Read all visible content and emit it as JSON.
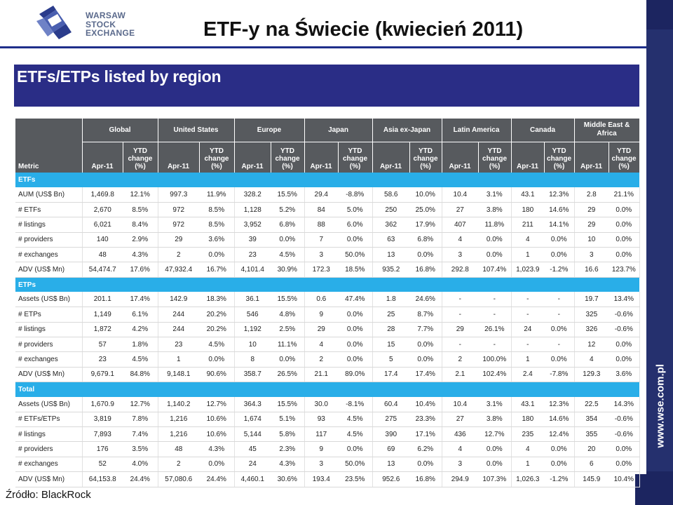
{
  "header": {
    "logo_text": [
      "WARSAW",
      "STOCK",
      "EXCHANGE"
    ],
    "title": "ETF-y na Świecie (kwiecień 2011)",
    "side_url": "www.wse.com.pl"
  },
  "banner": {
    "title": "ETFs/ETPs listed by region"
  },
  "table": {
    "metric_header": "Metric",
    "regions": [
      "Global",
      "United States",
      "Europe",
      "Japan",
      "Asia ex-Japan",
      "Latin America",
      "Canada",
      "Middle East & Africa"
    ],
    "period_label": "Apr-11",
    "change_label": "YTD change (%)",
    "sections": [
      {
        "name": "ETFs",
        "rows": [
          {
            "metric": "AUM (US$ Bn)",
            "values": [
              "1,469.8",
              "12.1%",
              "997.3",
              "11.9%",
              "328.2",
              "15.5%",
              "29.4",
              "-8.8%",
              "58.6",
              "10.0%",
              "10.4",
              "3.1%",
              "43.1",
              "12.3%",
              "2.8",
              "21.1%"
            ]
          },
          {
            "metric": "# ETFs",
            "values": [
              "2,670",
              "8.5%",
              "972",
              "8.5%",
              "1,128",
              "5.2%",
              "84",
              "5.0%",
              "250",
              "25.0%",
              "27",
              "3.8%",
              "180",
              "14.6%",
              "29",
              "0.0%"
            ]
          },
          {
            "metric": "# listings",
            "values": [
              "6,021",
              "8.4%",
              "972",
              "8.5%",
              "3,952",
              "6.8%",
              "88",
              "6.0%",
              "362",
              "17.9%",
              "407",
              "11.8%",
              "211",
              "14.1%",
              "29",
              "0.0%"
            ]
          },
          {
            "metric": "# providers",
            "values": [
              "140",
              "2.9%",
              "29",
              "3.6%",
              "39",
              "0.0%",
              "7",
              "0.0%",
              "63",
              "6.8%",
              "4",
              "0.0%",
              "4",
              "0.0%",
              "10",
              "0.0%"
            ]
          },
          {
            "metric": "# exchanges",
            "values": [
              "48",
              "4.3%",
              "2",
              "0.0%",
              "23",
              "4.5%",
              "3",
              "50.0%",
              "13",
              "0.0%",
              "3",
              "0.0%",
              "1",
              "0.0%",
              "3",
              "0.0%"
            ]
          },
          {
            "metric": "ADV (US$ Mn)",
            "values": [
              "54,474.7",
              "17.6%",
              "47,932.4",
              "16.7%",
              "4,101.4",
              "30.9%",
              "172.3",
              "18.5%",
              "935.2",
              "16.8%",
              "292.8",
              "107.4%",
              "1,023.9",
              "-1.2%",
              "16.6",
              "123.7%"
            ]
          }
        ]
      },
      {
        "name": "ETPs",
        "rows": [
          {
            "metric": "Assets (US$ Bn)",
            "values": [
              "201.1",
              "17.4%",
              "142.9",
              "18.3%",
              "36.1",
              "15.5%",
              "0.6",
              "47.4%",
              "1.8",
              "24.6%",
              "-",
              "-",
              "-",
              "-",
              "19.7",
              "13.4%"
            ]
          },
          {
            "metric": "# ETPs",
            "values": [
              "1,149",
              "6.1%",
              "244",
              "20.2%",
              "546",
              "4.8%",
              "9",
              "0.0%",
              "25",
              "8.7%",
              "-",
              "-",
              "-",
              "-",
              "325",
              "-0.6%"
            ]
          },
          {
            "metric": "# listings",
            "values": [
              "1,872",
              "4.2%",
              "244",
              "20.2%",
              "1,192",
              "2.5%",
              "29",
              "0.0%",
              "28",
              "7.7%",
              "29",
              "26.1%",
              "24",
              "0.0%",
              "326",
              "-0.6%"
            ]
          },
          {
            "metric": "# providers",
            "values": [
              "57",
              "1.8%",
              "23",
              "4.5%",
              "10",
              "11.1%",
              "4",
              "0.0%",
              "15",
              "0.0%",
              "-",
              "-",
              "-",
              "-",
              "12",
              "0.0%"
            ]
          },
          {
            "metric": "# exchanges",
            "values": [
              "23",
              "4.5%",
              "1",
              "0.0%",
              "8",
              "0.0%",
              "2",
              "0.0%",
              "5",
              "0.0%",
              "2",
              "100.0%",
              "1",
              "0.0%",
              "4",
              "0.0%"
            ]
          },
          {
            "metric": "ADV (US$ Mn)",
            "values": [
              "9,679.1",
              "84.8%",
              "9,148.1",
              "90.6%",
              "358.7",
              "26.5%",
              "21.1",
              "89.0%",
              "17.4",
              "17.4%",
              "2.1",
              "102.4%",
              "2.4",
              "-7.8%",
              "129.3",
              "3.6%"
            ]
          }
        ]
      },
      {
        "name": "Total",
        "rows": [
          {
            "metric": "Assets (US$ Bn)",
            "values": [
              "1,670.9",
              "12.7%",
              "1,140.2",
              "12.7%",
              "364.3",
              "15.5%",
              "30.0",
              "-8.1%",
              "60.4",
              "10.4%",
              "10.4",
              "3.1%",
              "43.1",
              "12.3%",
              "22.5",
              "14.3%"
            ]
          },
          {
            "metric": "# ETFs/ETPs",
            "values": [
              "3,819",
              "7.8%",
              "1,216",
              "10.6%",
              "1,674",
              "5.1%",
              "93",
              "4.5%",
              "275",
              "23.3%",
              "27",
              "3.8%",
              "180",
              "14.6%",
              "354",
              "-0.6%"
            ]
          },
          {
            "metric": "# listings",
            "values": [
              "7,893",
              "7.4%",
              "1,216",
              "10.6%",
              "5,144",
              "5.8%",
              "117",
              "4.5%",
              "390",
              "17.1%",
              "436",
              "12.7%",
              "235",
              "12.4%",
              "355",
              "-0.6%"
            ]
          },
          {
            "metric": "# providers",
            "values": [
              "176",
              "3.5%",
              "48",
              "4.3%",
              "45",
              "2.3%",
              "9",
              "0.0%",
              "69",
              "6.2%",
              "4",
              "0.0%",
              "4",
              "0.0%",
              "20",
              "0.0%"
            ]
          },
          {
            "metric": "# exchanges",
            "values": [
              "52",
              "4.0%",
              "2",
              "0.0%",
              "24",
              "4.3%",
              "3",
              "50.0%",
              "13",
              "0.0%",
              "3",
              "0.0%",
              "1",
              "0.0%",
              "6",
              "0.0%"
            ]
          },
          {
            "metric": "ADV (US$ Mn)",
            "values": [
              "64,153.8",
              "24.4%",
              "57,080.6",
              "24.4%",
              "4,460.1",
              "30.6%",
              "193.4",
              "23.5%",
              "952.6",
              "16.8%",
              "294.9",
              "107.3%",
              "1,026.3",
              "-1.2%",
              "145.9",
              "10.4%"
            ]
          }
        ]
      }
    ]
  },
  "footer": {
    "source": "Źródło: BlackRock"
  },
  "colors": {
    "banner": "#2a2d86",
    "section": "#29aee8",
    "header": "#575a5e",
    "sidebar": "#25306e"
  }
}
